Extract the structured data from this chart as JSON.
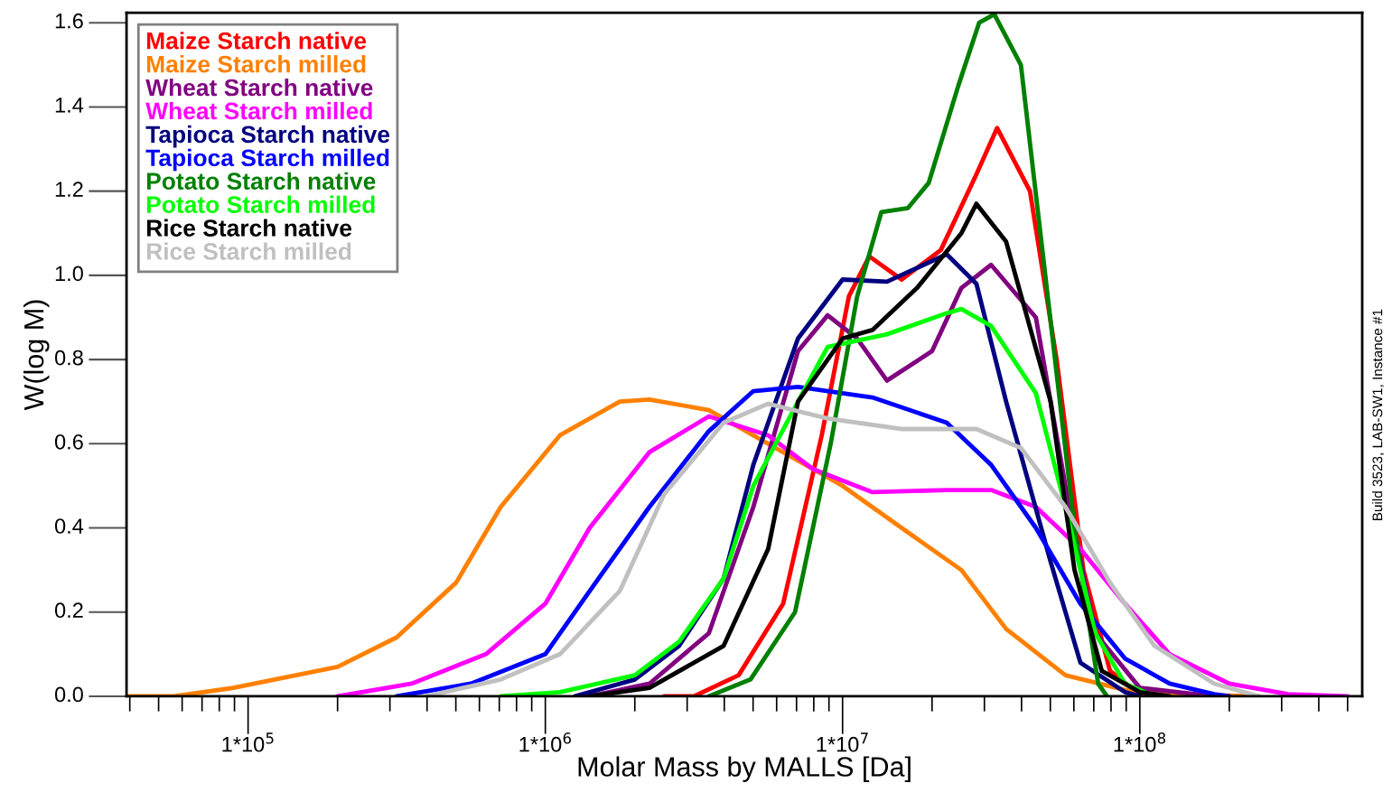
{
  "chart_data": {
    "type": "line",
    "xlabel": "Molar Mass by MALLS [Da]",
    "ylabel": "W(log M)",
    "log": "x",
    "grid": false,
    "legend": "top left",
    "marker": "none",
    "line_style": "solid",
    "xlim": [
      39000.0,
      560000000.0
    ],
    "xticks": [
      {
        "value": 100000.0,
        "label": "1*10$^{5}$"
      },
      {
        "value": 1000000.0,
        "label": "1*10$^{6}$"
      },
      {
        "value": 10000000.0,
        "label": "1*10$^{7}$"
      },
      {
        "value": 100000000.0,
        "label": "1*10$^{8}$"
      }
    ],
    "ylim": [
      0,
      1.624
    ],
    "yticks": [
      {
        "value": 0,
        "label": "0.0"
      },
      {
        "value": 0.2,
        "label": "0.2"
      },
      {
        "value": 0.4,
        "label": "0.4"
      },
      {
        "value": 0.6,
        "label": "0.6"
      },
      {
        "value": 0.8,
        "label": "0.8"
      },
      {
        "value": 1,
        "label": "1.0"
      },
      {
        "value": 1.2,
        "label": "1.2"
      },
      {
        "value": 1.4,
        "label": "1.4"
      },
      {
        "value": 1.6,
        "label": "1.6"
      }
    ],
    "annotations": [
      "Build 3523, LAB-SW1, Instance #1"
    ],
    "series": [
      {
        "name": "Maize Starch native",
        "color": "#ff0000",
        "x": [
          2510000.0,
          3160000.0,
          4470000.0,
          6310000.0,
          8510000.0,
          10500000.0,
          12300000.0,
          15800000.0,
          21400000.0,
          28200000.0,
          33100000.0,
          42700000.0,
          52500000.0,
          64600000.0,
          79400000.0,
          97700000.0,
          123000000.0
        ],
        "values": [
          0,
          0,
          0.05,
          0.22,
          0.62,
          0.95,
          1.045,
          0.99,
          1.06,
          1.24,
          1.35,
          1.2,
          0.8,
          0.3,
          0.06,
          0.01,
          0
        ]
      },
      {
        "name": "Maize Starch milled",
        "color": "#ff8000",
        "x": [
          39800.0,
          56200.0,
          89100.0,
          200000.0,
          316000.0,
          501000.0,
          708000.0,
          1120000.0,
          1780000.0,
          2240000.0,
          3550000.0,
          5620000.0,
          10000000.0,
          15800000.0,
          25100000.0,
          35500000.0,
          56200000.0,
          89100000.0,
          126000000.0,
          251000000.0
        ],
        "values": [
          0,
          0,
          0.02,
          0.07,
          0.14,
          0.27,
          0.45,
          0.62,
          0.7,
          0.705,
          0.68,
          0.6,
          0.5,
          0.4,
          0.3,
          0.16,
          0.05,
          0.015,
          0.005,
          0
        ]
      },
      {
        "name": "Wheat Starch native",
        "color": "#800080",
        "x": [
          1410000.0,
          2240000.0,
          3550000.0,
          5010000.0,
          7080000.0,
          8910000.0,
          11200000.0,
          14100000.0,
          20000000.0,
          25100000.0,
          31600000.0,
          44700000.0,
          56200000.0,
          70800000.0,
          100000000.0,
          178000000.0
        ],
        "values": [
          0,
          0.03,
          0.15,
          0.45,
          0.82,
          0.905,
          0.85,
          0.75,
          0.82,
          0.97,
          1.025,
          0.9,
          0.5,
          0.15,
          0.02,
          0
        ]
      },
      {
        "name": "Wheat Starch milled",
        "color": "#ff00ff",
        "x": [
          200000.0,
          355000.0,
          631000.0,
          1000000.0,
          1410000.0,
          2240000.0,
          3550000.0,
          5620000.0,
          7940000.0,
          12600000.0,
          22400000.0,
          31600000.0,
          44700000.0,
          63100000.0,
          89100000.0,
          126000000.0,
          200000000.0,
          316000000.0,
          501000000.0
        ],
        "values": [
          0,
          0.03,
          0.1,
          0.22,
          0.4,
          0.58,
          0.665,
          0.62,
          0.54,
          0.485,
          0.49,
          0.49,
          0.45,
          0.35,
          0.22,
          0.1,
          0.03,
          0.005,
          0
        ]
      },
      {
        "name": "Tapioca Starch native",
        "color": "#000080",
        "x": [
          1260000.0,
          2000000.0,
          2820000.0,
          3980000.0,
          5010000.0,
          7080000.0,
          10000000.0,
          14100000.0,
          22400000.0,
          28200000.0,
          35500000.0,
          50100000.0,
          63100000.0,
          89100000.0,
          100000000.0
        ],
        "values": [
          0,
          0.04,
          0.12,
          0.28,
          0.55,
          0.85,
          0.99,
          0.985,
          1.05,
          0.98,
          0.7,
          0.32,
          0.08,
          0.01,
          0
        ]
      },
      {
        "name": "Tapioca Starch milled",
        "color": "#0000ff",
        "x": [
          316000.0,
          562000.0,
          1000000.0,
          1410000.0,
          2240000.0,
          3550000.0,
          5010000.0,
          7080000.0,
          12600000.0,
          22400000.0,
          31600000.0,
          44700000.0,
          63100000.0,
          89100000.0,
          126000000.0,
          178000000.0,
          200000000.0
        ],
        "values": [
          0,
          0.03,
          0.1,
          0.25,
          0.45,
          0.63,
          0.725,
          0.735,
          0.71,
          0.65,
          0.55,
          0.4,
          0.22,
          0.09,
          0.03,
          0.005,
          0
        ]
      },
      {
        "name": "Potato Starch native",
        "color": "#008000",
        "x": [
          3550000.0,
          4900000.0,
          6920000.0,
          9120000.0,
          11200000.0,
          13500000.0,
          16600000.0,
          19500000.0,
          24500000.0,
          28800000.0,
          32400000.0,
          39800000.0,
          49000000.0,
          60300000.0,
          72400000.0,
          77600000.0
        ],
        "values": [
          0,
          0.04,
          0.2,
          0.6,
          0.95,
          1.15,
          1.16,
          1.22,
          1.45,
          1.6,
          1.62,
          1.5,
          0.95,
          0.4,
          0.03,
          0
        ]
      },
      {
        "name": "Potato Starch milled",
        "color": "#00ff00",
        "x": [
          708000.0,
          1120000.0,
          2000000.0,
          2820000.0,
          3980000.0,
          5010000.0,
          7080000.0,
          8910000.0,
          14100000.0,
          22400000.0,
          25100000.0,
          31600000.0,
          44700000.0,
          56200000.0,
          70800000.0,
          89100000.0,
          112000000.0
        ],
        "values": [
          0,
          0.01,
          0.05,
          0.13,
          0.28,
          0.5,
          0.7,
          0.83,
          0.86,
          0.91,
          0.92,
          0.88,
          0.72,
          0.45,
          0.15,
          0.03,
          0
        ]
      },
      {
        "name": "Rice Starch native",
        "color": "#000000",
        "x": [
          1410000.0,
          2240000.0,
          3980000.0,
          5620000.0,
          7080000.0,
          10000000.0,
          12600000.0,
          17800000.0,
          25100000.0,
          28200000.0,
          35500000.0,
          50100000.0,
          60300000.0,
          74500000.0,
          100000000.0,
          126000000.0
        ],
        "values": [
          0,
          0.02,
          0.12,
          0.35,
          0.7,
          0.85,
          0.87,
          0.97,
          1.1,
          1.17,
          1.08,
          0.7,
          0.3,
          0.06,
          0.01,
          0
        ]
      },
      {
        "name": "Rice Starch milled",
        "color": "#c0c0c0",
        "x": [
          398000.0,
          708000.0,
          1120000.0,
          1780000.0,
          2510000.0,
          3980000.0,
          5620000.0,
          8910000.0,
          15800000.0,
          28200000.0,
          39800000.0,
          56200000.0,
          79400000.0,
          112000000.0,
          178000000.0,
          251000000.0
        ],
        "values": [
          0,
          0.04,
          0.1,
          0.25,
          0.48,
          0.65,
          0.695,
          0.66,
          0.635,
          0.635,
          0.59,
          0.45,
          0.27,
          0.12,
          0.03,
          0
        ]
      }
    ]
  }
}
